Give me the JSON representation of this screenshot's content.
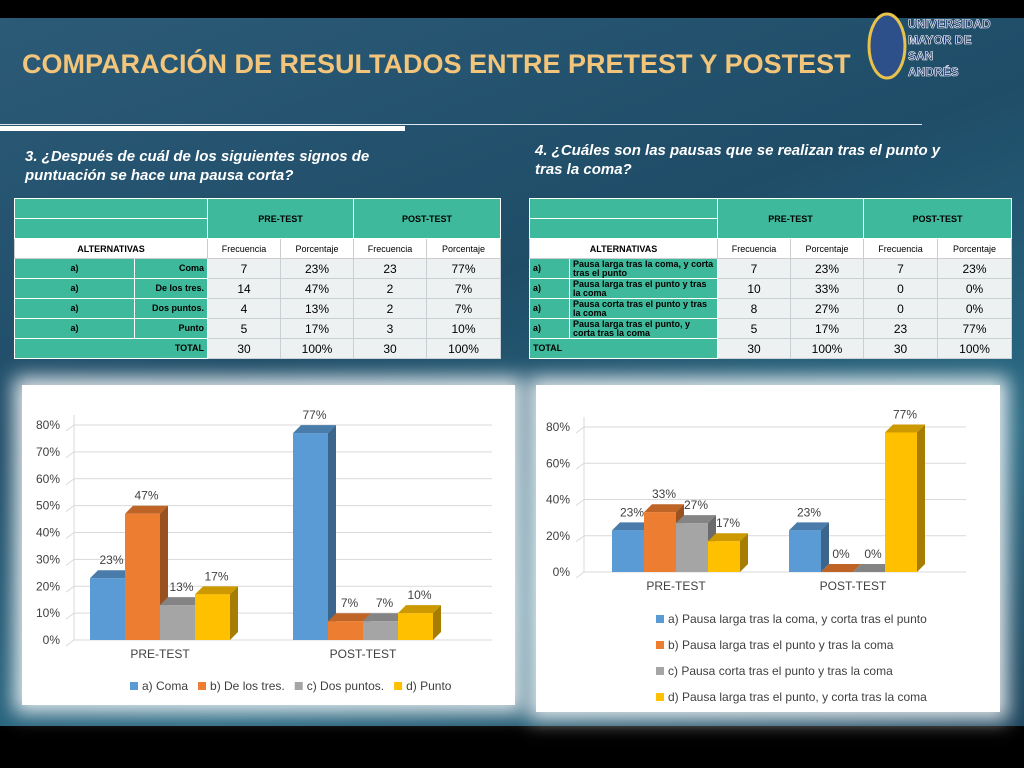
{
  "title": "COMPARACIÓN DE RESULTADOS ENTRE PRETEST Y POSTEST",
  "logo": [
    "UNIVERSIDAD",
    "MAYOR DE",
    "SAN",
    "ANDRÉS"
  ],
  "questions": [
    {
      "question": "3. ¿Después de cuál de los siguientes signos de puntuación se hace una pausa corta?",
      "table": {
        "groups": [
          "PRE-TEST",
          "POST-TEST"
        ],
        "alt_header": "ALTERNATIVAS",
        "subheaders": [
          "Frecuencia",
          "Porcentaje",
          "Frecuencia",
          "Porcentaje"
        ],
        "rows": [
          {
            "letter": "a)",
            "text": "Coma",
            "cells": [
              "7",
              "23%",
              "23",
              "77%"
            ]
          },
          {
            "letter": "a)",
            "text": "De los tres.",
            "cells": [
              "14",
              "47%",
              "2",
              "7%"
            ]
          },
          {
            "letter": "a)",
            "text": "Dos puntos.",
            "cells": [
              "4",
              "13%",
              "2",
              "7%"
            ]
          },
          {
            "letter": "a)",
            "text": "Punto",
            "cells": [
              "5",
              "17%",
              "3",
              "10%"
            ]
          }
        ],
        "total": {
          "label": "TOTAL",
          "cells": [
            "30",
            "100%",
            "30",
            "100%"
          ]
        }
      }
    },
    {
      "question": "4. ¿Cuáles son las pausas que se realizan tras el punto y tras la coma?",
      "table": {
        "groups": [
          "PRE-TEST",
          "POST-TEST"
        ],
        "alt_header": "ALTERNATIVAS",
        "subheaders": [
          "Frecuencia",
          "Porcentaje",
          "Frecuencia",
          "Porcentaje"
        ],
        "rows": [
          {
            "letter": "a)",
            "text": "Pausa larga tras la coma, y corta tras el punto",
            "cells": [
              "7",
              "23%",
              "7",
              "23%"
            ]
          },
          {
            "letter": "a)",
            "text": "Pausa larga tras el punto y tras la coma",
            "cells": [
              "10",
              "33%",
              "0",
              "0%"
            ]
          },
          {
            "letter": "a)",
            "text": "Pausa corta tras el punto y tras la coma",
            "cells": [
              "8",
              "27%",
              "0",
              "0%"
            ]
          },
          {
            "letter": "a)",
            "text": "Pausa larga tras el punto, y corta tras la coma",
            "cells": [
              "5",
              "17%",
              "23",
              "77%"
            ]
          }
        ],
        "total": {
          "label": "TOTAL",
          "cells": [
            "30",
            "100%",
            "30",
            "100%"
          ]
        }
      }
    }
  ],
  "chart_data": [
    {
      "type": "bar",
      "categories": [
        "PRE-TEST",
        "POST-TEST"
      ],
      "ylim": [
        0,
        80
      ],
      "yticks": [
        {
          "value": 0,
          "label": "0%"
        },
        {
          "value": 10,
          "label": "10%"
        },
        {
          "value": 20,
          "label": "20%"
        },
        {
          "value": 30,
          "label": "30%"
        },
        {
          "value": 40,
          "label": "40%"
        },
        {
          "value": 50,
          "label": "50%"
        },
        {
          "value": 60,
          "label": "60%"
        },
        {
          "value": 70,
          "label": "70%"
        },
        {
          "value": 80,
          "label": "80%"
        }
      ],
      "grid": true,
      "legend": "bottom",
      "series": [
        {
          "name": "a) Coma",
          "color": "#5b9bd5",
          "values": [
            23,
            77
          ],
          "value_labels": [
            "23%",
            "77%"
          ]
        },
        {
          "name": "b) De los tres.",
          "color": "#ed7d31",
          "values": [
            47,
            7
          ],
          "value_labels": [
            "47%",
            "7%"
          ]
        },
        {
          "name": "c) Dos puntos.",
          "color": "#a5a5a5",
          "values": [
            13,
            7
          ],
          "value_labels": [
            "13%",
            "7%"
          ]
        },
        {
          "name": "d) Punto",
          "color": "#ffc000",
          "values": [
            17,
            10
          ],
          "value_labels": [
            "17%",
            "10%"
          ]
        }
      ]
    },
    {
      "type": "bar",
      "categories": [
        "PRE-TEST",
        "POST-TEST"
      ],
      "ylim": [
        0,
        80
      ],
      "yticks": [
        {
          "value": 0,
          "label": "0%"
        },
        {
          "value": 20,
          "label": "20%"
        },
        {
          "value": 40,
          "label": "40%"
        },
        {
          "value": 60,
          "label": "60%"
        },
        {
          "value": 80,
          "label": "80%"
        }
      ],
      "grid": true,
      "legend": "bottom",
      "series": [
        {
          "name": "a) Pausa larga tras la coma, y corta tras el punto",
          "color": "#5b9bd5",
          "values": [
            23,
            23
          ],
          "value_labels": [
            "23%",
            "23%"
          ]
        },
        {
          "name": "b) Pausa larga tras el punto y tras la coma",
          "color": "#ed7d31",
          "values": [
            33,
            0
          ],
          "value_labels": [
            "33%",
            "0%"
          ]
        },
        {
          "name": "c) Pausa corta tras el punto y tras la coma",
          "color": "#a5a5a5",
          "values": [
            27,
            0
          ],
          "value_labels": [
            "27%",
            "0%"
          ]
        },
        {
          "name": "d) Pausa larga tras el punto, y corta tras la coma",
          "color": "#ffc000",
          "values": [
            17,
            77
          ],
          "value_labels": [
            "17%",
            "77%"
          ]
        }
      ]
    }
  ]
}
